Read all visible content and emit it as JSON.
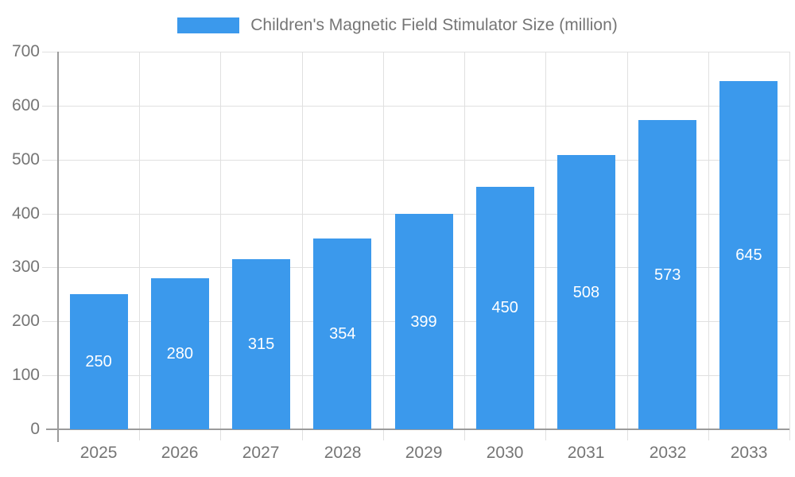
{
  "legend": {
    "items": [
      {
        "label": "Children's Magnetic Field Stimulator Size (million)",
        "color": "#3B99EC"
      }
    ]
  },
  "chart_data": {
    "type": "bar",
    "title": "Children's Magnetic Field Stimulator Size (million)",
    "series_name": "Children's Magnetic Field Stimulator Size (million)",
    "categories": [
      "2025",
      "2026",
      "2027",
      "2028",
      "2029",
      "2030",
      "2031",
      "2032",
      "2033"
    ],
    "values": [
      250,
      280,
      315,
      354,
      399,
      450,
      508,
      573,
      645
    ],
    "xlabel": "",
    "ylabel": "",
    "ylim": [
      0,
      700
    ],
    "yticks": [
      0,
      100,
      200,
      300,
      400,
      500,
      600,
      700
    ],
    "grid": true,
    "legend_position": "top-center",
    "value_label_position": "inside-center"
  },
  "colors": {
    "bar": "#3B99EC",
    "axis_line": "#9b9b9b",
    "grid_line": "#e0e0e0",
    "tick_label": "#757575",
    "legend_text": "#757575",
    "value_label": "#ffffff",
    "background": "#ffffff"
  }
}
